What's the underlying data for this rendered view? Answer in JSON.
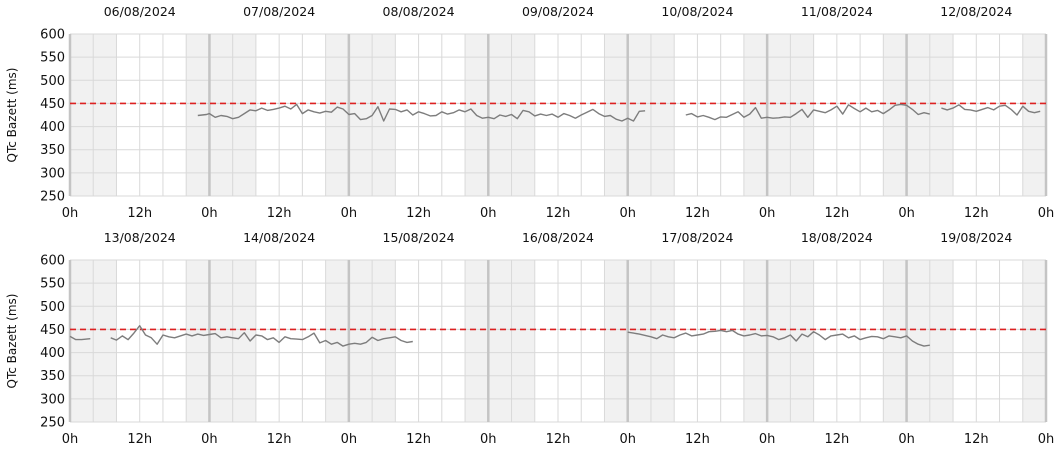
{
  "colors": {
    "band": "#f1f1f1",
    "grid": "#d9d9d9",
    "midnight": "#c4c4c4",
    "series": "#7d7d7d",
    "threshold": "#dd2222"
  },
  "chart_data": [
    {
      "type": "line",
      "title": "",
      "ylabel": "QTc Bazett (ms)",
      "ylim": [
        250,
        600
      ],
      "yticks": [
        250,
        300,
        350,
        400,
        450,
        500,
        550,
        600
      ],
      "xlim": [
        0,
        168
      ],
      "x_unit": "hours from 06/08/2024 00:00",
      "x_tick_labels": [
        "0h",
        "12h",
        "0h",
        "12h",
        "0h",
        "12h",
        "0h",
        "12h",
        "0h",
        "12h",
        "0h",
        "12h",
        "0h",
        "12h",
        "0h"
      ],
      "day_labels": [
        "06/08/2024",
        "07/08/2024",
        "08/08/2024",
        "09/08/2024",
        "10/08/2024",
        "11/08/2024",
        "12/08/2024"
      ],
      "threshold": 450,
      "night_bands": [
        [
          0,
          8
        ],
        [
          20,
          32
        ],
        [
          44,
          56
        ],
        [
          68,
          80
        ],
        [
          92,
          104
        ],
        [
          116,
          128
        ],
        [
          140,
          152
        ],
        [
          164,
          168
        ]
      ],
      "series": [
        {
          "values": [
            [
              22,
              424
            ],
            [
              23.5,
              426
            ],
            [
              24,
              428
            ],
            [
              25,
              420
            ],
            [
              26,
              424
            ],
            [
              27,
              422
            ],
            [
              28,
              417
            ],
            [
              29,
              420
            ],
            [
              30,
              428
            ],
            [
              31,
              436
            ],
            [
              32,
              434
            ],
            [
              33,
              440
            ],
            [
              34,
              435
            ],
            [
              35,
              437
            ],
            [
              36,
              440
            ],
            [
              37,
              444
            ],
            [
              38,
              438
            ],
            [
              39,
              448
            ],
            [
              40,
              428
            ],
            [
              41,
              436
            ],
            [
              42,
              432
            ],
            [
              43,
              429
            ],
            [
              44,
              433
            ],
            [
              45,
              431
            ],
            [
              46,
              442
            ],
            [
              47,
              438
            ],
            [
              48,
              426
            ],
            [
              49,
              428
            ],
            [
              50,
              415
            ],
            [
              51,
              417
            ],
            [
              52,
              424
            ],
            [
              53,
              443
            ],
            [
              54,
              412
            ],
            [
              55,
              438
            ],
            [
              56,
              437
            ],
            [
              57,
              432
            ],
            [
              58,
              436
            ],
            [
              59,
              425
            ],
            [
              60,
              432
            ],
            [
              61,
              428
            ],
            [
              62,
              423
            ],
            [
              63,
              424
            ],
            [
              64,
              432
            ],
            [
              65,
              427
            ],
            [
              66,
              430
            ],
            [
              67,
              436
            ],
            [
              68,
              432
            ],
            [
              69,
              438
            ],
            [
              70,
              424
            ],
            [
              71,
              418
            ],
            [
              72,
              420
            ],
            [
              73,
              417
            ],
            [
              74,
              425
            ],
            [
              75,
              422
            ],
            [
              76,
              426
            ],
            [
              77,
              417
            ],
            [
              78,
              435
            ],
            [
              79,
              432
            ],
            [
              80,
              423
            ],
            [
              81,
              427
            ],
            [
              82,
              424
            ],
            [
              83,
              427
            ],
            [
              84,
              420
            ],
            [
              85,
              428
            ],
            [
              86,
              424
            ],
            [
              87,
              418
            ],
            [
              88,
              425
            ],
            [
              89,
              431
            ],
            [
              90,
              437
            ],
            [
              91,
              428
            ],
            [
              92,
              422
            ],
            [
              93,
              424
            ],
            [
              94,
              416
            ],
            [
              95,
              412
            ],
            [
              96,
              418
            ],
            [
              97,
              412
            ],
            [
              98,
              433
            ],
            [
              99,
              434
            ]
          ]
        },
        {
          "values": [
            [
              106,
              425
            ],
            [
              107,
              428
            ],
            [
              108,
              421
            ],
            [
              109,
              424
            ],
            [
              110,
              420
            ],
            [
              111,
              415
            ],
            [
              112,
              421
            ],
            [
              113,
              420
            ],
            [
              114,
              426
            ],
            [
              115,
              432
            ],
            [
              116,
              420
            ],
            [
              117,
              427
            ],
            [
              118,
              441
            ],
            [
              119,
              418
            ],
            [
              120,
              420
            ],
            [
              121,
              418
            ],
            [
              122,
              419
            ],
            [
              123,
              421
            ],
            [
              124,
              420
            ],
            [
              125,
              428
            ],
            [
              126,
              437
            ],
            [
              127,
              420
            ],
            [
              128,
              436
            ],
            [
              129,
              433
            ],
            [
              130,
              430
            ],
            [
              131,
              436
            ],
            [
              132,
              444
            ],
            [
              133,
              427
            ],
            [
              134,
              447
            ],
            [
              135,
              439
            ],
            [
              136,
              432
            ],
            [
              137,
              440
            ],
            [
              138,
              432
            ],
            [
              139,
              435
            ],
            [
              140,
              428
            ],
            [
              141,
              436
            ],
            [
              142,
              446
            ],
            [
              143,
              448
            ],
            [
              144,
              446
            ],
            [
              145,
              437
            ],
            [
              146,
              426
            ],
            [
              147,
              430
            ],
            [
              148,
              427
            ]
          ]
        },
        {
          "values": [
            [
              150,
              440
            ],
            [
              151,
              436
            ],
            [
              152,
              440
            ],
            [
              153,
              447
            ],
            [
              154,
              437
            ],
            [
              155,
              436
            ],
            [
              156,
              433
            ],
            [
              157,
              437
            ],
            [
              158,
              441
            ],
            [
              159,
              436
            ],
            [
              160,
              444
            ],
            [
              161,
              446
            ],
            [
              162,
              437
            ],
            [
              163,
              425
            ],
            [
              164,
              444
            ],
            [
              165,
              433
            ],
            [
              166,
              430
            ],
            [
              167,
              433
            ]
          ]
        }
      ]
    },
    {
      "type": "line",
      "title": "",
      "ylabel": "QTc Bazett (ms)",
      "ylim": [
        250,
        600
      ],
      "yticks": [
        250,
        300,
        350,
        400,
        450,
        500,
        550,
        600
      ],
      "xlim": [
        0,
        168
      ],
      "x_unit": "hours from 13/08/2024 00:00",
      "x_tick_labels": [
        "0h",
        "12h",
        "0h",
        "12h",
        "0h",
        "12h",
        "0h",
        "12h",
        "0h",
        "12h",
        "0h",
        "12h",
        "0h",
        "12h",
        "0h"
      ],
      "day_labels": [
        "13/08/2024",
        "14/08/2024",
        "15/08/2024",
        "16/08/2024",
        "17/08/2024",
        "18/08/2024",
        "19/08/2024"
      ],
      "threshold": 450,
      "night_bands": [
        [
          0,
          8
        ],
        [
          20,
          32
        ],
        [
          44,
          56
        ],
        [
          68,
          80
        ],
        [
          92,
          104
        ],
        [
          116,
          128
        ],
        [
          140,
          152
        ],
        [
          164,
          168
        ]
      ],
      "series": [
        {
          "values": [
            [
              0,
              435
            ],
            [
              1,
              428
            ],
            [
              2,
              428
            ],
            [
              3.5,
              430
            ]
          ]
        },
        {
          "values": [
            [
              7,
              432
            ],
            [
              8,
              427
            ],
            [
              9,
              436
            ],
            [
              10,
              428
            ],
            [
              11,
              442
            ],
            [
              12,
              458
            ],
            [
              13,
              438
            ],
            [
              14,
              432
            ],
            [
              15,
              418
            ],
            [
              16,
              438
            ],
            [
              17,
              434
            ],
            [
              18,
              432
            ],
            [
              19,
              436
            ],
            [
              20,
              440
            ],
            [
              21,
              436
            ],
            [
              22,
              440
            ],
            [
              23,
              437
            ],
            [
              24,
              439
            ],
            [
              25,
              441
            ],
            [
              26,
              432
            ],
            [
              27,
              434
            ],
            [
              28,
              432
            ],
            [
              29,
              430
            ],
            [
              30,
              443
            ],
            [
              31,
              425
            ],
            [
              32,
              438
            ],
            [
              33,
              436
            ],
            [
              34,
              428
            ],
            [
              35,
              432
            ],
            [
              36,
              422
            ],
            [
              37,
              434
            ],
            [
              38,
              430
            ],
            [
              39,
              429
            ],
            [
              40,
              428
            ],
            [
              41,
              434
            ],
            [
              42,
              442
            ],
            [
              43,
              421
            ],
            [
              44,
              426
            ],
            [
              45,
              418
            ],
            [
              46,
              422
            ],
            [
              47,
              414
            ],
            [
              48,
              418
            ],
            [
              49,
              420
            ],
            [
              50,
              418
            ],
            [
              51,
              422
            ],
            [
              52,
              433
            ],
            [
              53,
              426
            ],
            [
              54,
              430
            ],
            [
              55,
              432
            ],
            [
              56,
              434
            ],
            [
              57,
              426
            ],
            [
              58,
              422
            ],
            [
              59,
              424
            ]
          ]
        },
        {
          "values": [
            [
              96,
              444
            ],
            [
              97,
              442
            ],
            [
              98,
              440
            ],
            [
              99,
              437
            ],
            [
              100,
              434
            ],
            [
              101,
              430
            ],
            [
              102,
              438
            ],
            [
              103,
              434
            ],
            [
              104,
              432
            ],
            [
              105,
              438
            ],
            [
              106,
              442
            ],
            [
              107,
              436
            ],
            [
              108,
              438
            ],
            [
              109,
              440
            ],
            [
              110,
              445
            ],
            [
              111,
              446
            ],
            [
              112,
              448
            ],
            [
              113,
              445
            ],
            [
              114,
              448
            ],
            [
              115,
              440
            ],
            [
              116,
              436
            ],
            [
              117,
              438
            ],
            [
              118,
              441
            ],
            [
              119,
              436
            ],
            [
              120,
              437
            ],
            [
              121,
              434
            ],
            [
              122,
              428
            ],
            [
              123,
              432
            ],
            [
              124,
              438
            ],
            [
              125,
              425
            ],
            [
              126,
              440
            ],
            [
              127,
              434
            ],
            [
              128,
              445
            ],
            [
              129,
              438
            ],
            [
              130,
              428
            ],
            [
              131,
              436
            ],
            [
              132,
              438
            ],
            [
              133,
              440
            ],
            [
              134,
              432
            ],
            [
              135,
              436
            ],
            [
              136,
              428
            ],
            [
              137,
              432
            ],
            [
              138,
              435
            ],
            [
              139,
              434
            ],
            [
              140,
              430
            ],
            [
              141,
              436
            ],
            [
              142,
              434
            ],
            [
              143,
              432
            ],
            [
              144,
              436
            ],
            [
              145,
              425
            ],
            [
              146,
              418
            ],
            [
              147,
              414
            ],
            [
              148,
              416
            ]
          ]
        }
      ]
    }
  ]
}
